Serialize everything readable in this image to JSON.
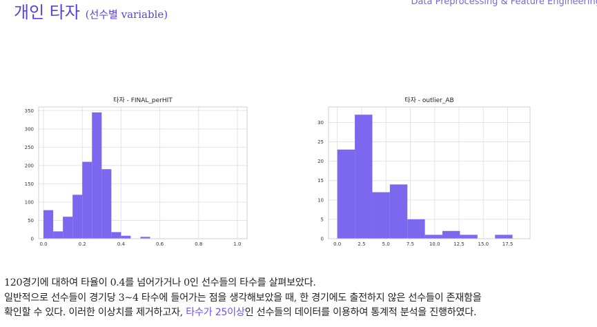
{
  "header": {
    "title": "개인 타자",
    "title_sub": "(선수별 variable)",
    "right_text": "Data Preprocessing & Feature Engineering"
  },
  "colors": {
    "bar": "#7b68ee",
    "accent": "#6d4ff0"
  },
  "chart_data": [
    {
      "type": "bar",
      "title": "타자 - FINAL_perHIT",
      "xlim": [
        -0.025,
        1.05
      ],
      "ylim": [
        0,
        360
      ],
      "xticks": [
        "0.0",
        "0.2",
        "0.4",
        "0.6",
        "0.8",
        "1.0"
      ],
      "xtick_values": [
        0,
        0.2,
        0.4,
        0.6,
        0.8,
        1.0
      ],
      "yticks": [
        "0",
        "50",
        "100",
        "150",
        "200",
        "250",
        "300",
        "350"
      ],
      "ytick_values": [
        0,
        50,
        100,
        150,
        200,
        250,
        300,
        350
      ],
      "bins": [
        {
          "x0": 0.0,
          "x1": 0.05,
          "value": 78
        },
        {
          "x0": 0.05,
          "x1": 0.1,
          "value": 20
        },
        {
          "x0": 0.1,
          "x1": 0.15,
          "value": 60
        },
        {
          "x0": 0.15,
          "x1": 0.2,
          "value": 120
        },
        {
          "x0": 0.2,
          "x1": 0.25,
          "value": 210
        },
        {
          "x0": 0.25,
          "x1": 0.3,
          "value": 345
        },
        {
          "x0": 0.3,
          "x1": 0.35,
          "value": 190
        },
        {
          "x0": 0.35,
          "x1": 0.4,
          "value": 18
        },
        {
          "x0": 0.4,
          "x1": 0.45,
          "value": 8
        },
        {
          "x0": 0.45,
          "x1": 0.5,
          "value": 0
        },
        {
          "x0": 0.5,
          "x1": 0.55,
          "value": 5
        }
      ],
      "grid": true
    },
    {
      "type": "bar",
      "title": "타자 - outlier_AB",
      "xlim": [
        -0.9,
        19.8
      ],
      "ylim": [
        0,
        34
      ],
      "xticks": [
        "0.0",
        "2.5",
        "5.0",
        "7.5",
        "10.0",
        "12.5",
        "15.0",
        "17.5"
      ],
      "xtick_values": [
        0,
        2.5,
        5,
        7.5,
        10,
        12.5,
        15,
        17.5
      ],
      "yticks": [
        "0",
        "5",
        "10",
        "15",
        "20",
        "25",
        "30"
      ],
      "ytick_values": [
        0,
        5,
        10,
        15,
        20,
        25,
        30
      ],
      "bins": [
        {
          "x0": 0.0,
          "x1": 1.8,
          "value": 23
        },
        {
          "x0": 1.8,
          "x1": 3.6,
          "value": 32
        },
        {
          "x0": 3.6,
          "x1": 5.4,
          "value": 12
        },
        {
          "x0": 5.4,
          "x1": 7.2,
          "value": 14
        },
        {
          "x0": 7.2,
          "x1": 9.0,
          "value": 5
        },
        {
          "x0": 9.0,
          "x1": 10.8,
          "value": 1
        },
        {
          "x0": 10.8,
          "x1": 12.6,
          "value": 2
        },
        {
          "x0": 12.6,
          "x1": 14.4,
          "value": 1
        },
        {
          "x0": 14.4,
          "x1": 16.2,
          "value": 0
        },
        {
          "x0": 16.2,
          "x1": 18.0,
          "value": 1
        }
      ],
      "grid": true
    }
  ],
  "body": {
    "line1": "120경기에 대하여 타율이 0.4를 넘어가거나 0인 선수들의 타수를 살펴보았다.",
    "line2": "일반적으로 선수들이 경기당 3~4 타수에 들어가는 점을 생각해보았을 때, 한 경기에도 출전하지 않은 선수들이 존재함을",
    "line3_pre": "확인할 수 있다. 이러한 이상치를 제거하고자, ",
    "line3_highlight": "타수가 25이상",
    "line3_post": "인 선수들의 데이터를 이용하여 통계적 분석을 진행하였다."
  }
}
